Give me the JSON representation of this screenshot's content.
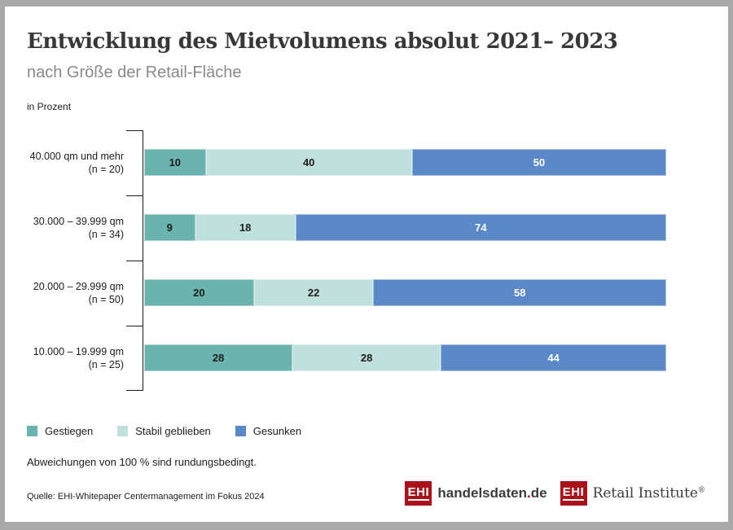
{
  "header": {
    "title": "Entwicklung des Mietvolumens absolut 2021– 2023",
    "subtitle": "nach Größe der Retail-Fläche",
    "unit_label": "in Prozent"
  },
  "chart_data": {
    "type": "bar",
    "orientation": "horizontal",
    "stacked": true,
    "unit": "Prozent",
    "xlim": [
      0,
      100
    ],
    "grid": false,
    "legend_position": "bottom",
    "categories": [
      "40.000 qm und mehr",
      "30.000 – 39.999 qm",
      "20.000 – 29.999 qm",
      "10.000 – 19.999 qm"
    ],
    "category_sublabels": [
      "(n = 20)",
      "(n = 34)",
      "(n = 50)",
      "(n = 25)"
    ],
    "series": [
      {
        "name": "Gestiegen",
        "color": "#6ab3af",
        "value_color": "#1d1d1b",
        "values": [
          10,
          9,
          20,
          28
        ]
      },
      {
        "name": "Stabil geblieben",
        "color": "#bfe0dd",
        "value_color": "#1d1d1b",
        "values": [
          40,
          18,
          22,
          28
        ]
      },
      {
        "name": "Gesunken",
        "color": "#5b89c8",
        "value_color": "#ffffff",
        "values": [
          50,
          74,
          58,
          44
        ]
      }
    ]
  },
  "notes": {
    "rounding": "Abweichungen von 100 % sind rundungsbedingt.",
    "source": "Quelle: EHI-Whitepaper Centermanagement im Fokus 2024"
  },
  "logos": [
    {
      "box": "EHI",
      "name": "handelsdaten",
      "dot": ".",
      "tld": "de"
    },
    {
      "box": "EHI",
      "name": "Retail Institute",
      "reg": "®"
    }
  ],
  "colors": {
    "gestiegen": "#6ab3af",
    "stabil_geblieben": "#bfe0dd",
    "gesunken": "#5b89c8",
    "logo_red": "#aa1118",
    "frame_gray": "#a9a9a9",
    "title_text": "#383838",
    "subtitle_text": "#8a8a8a"
  }
}
